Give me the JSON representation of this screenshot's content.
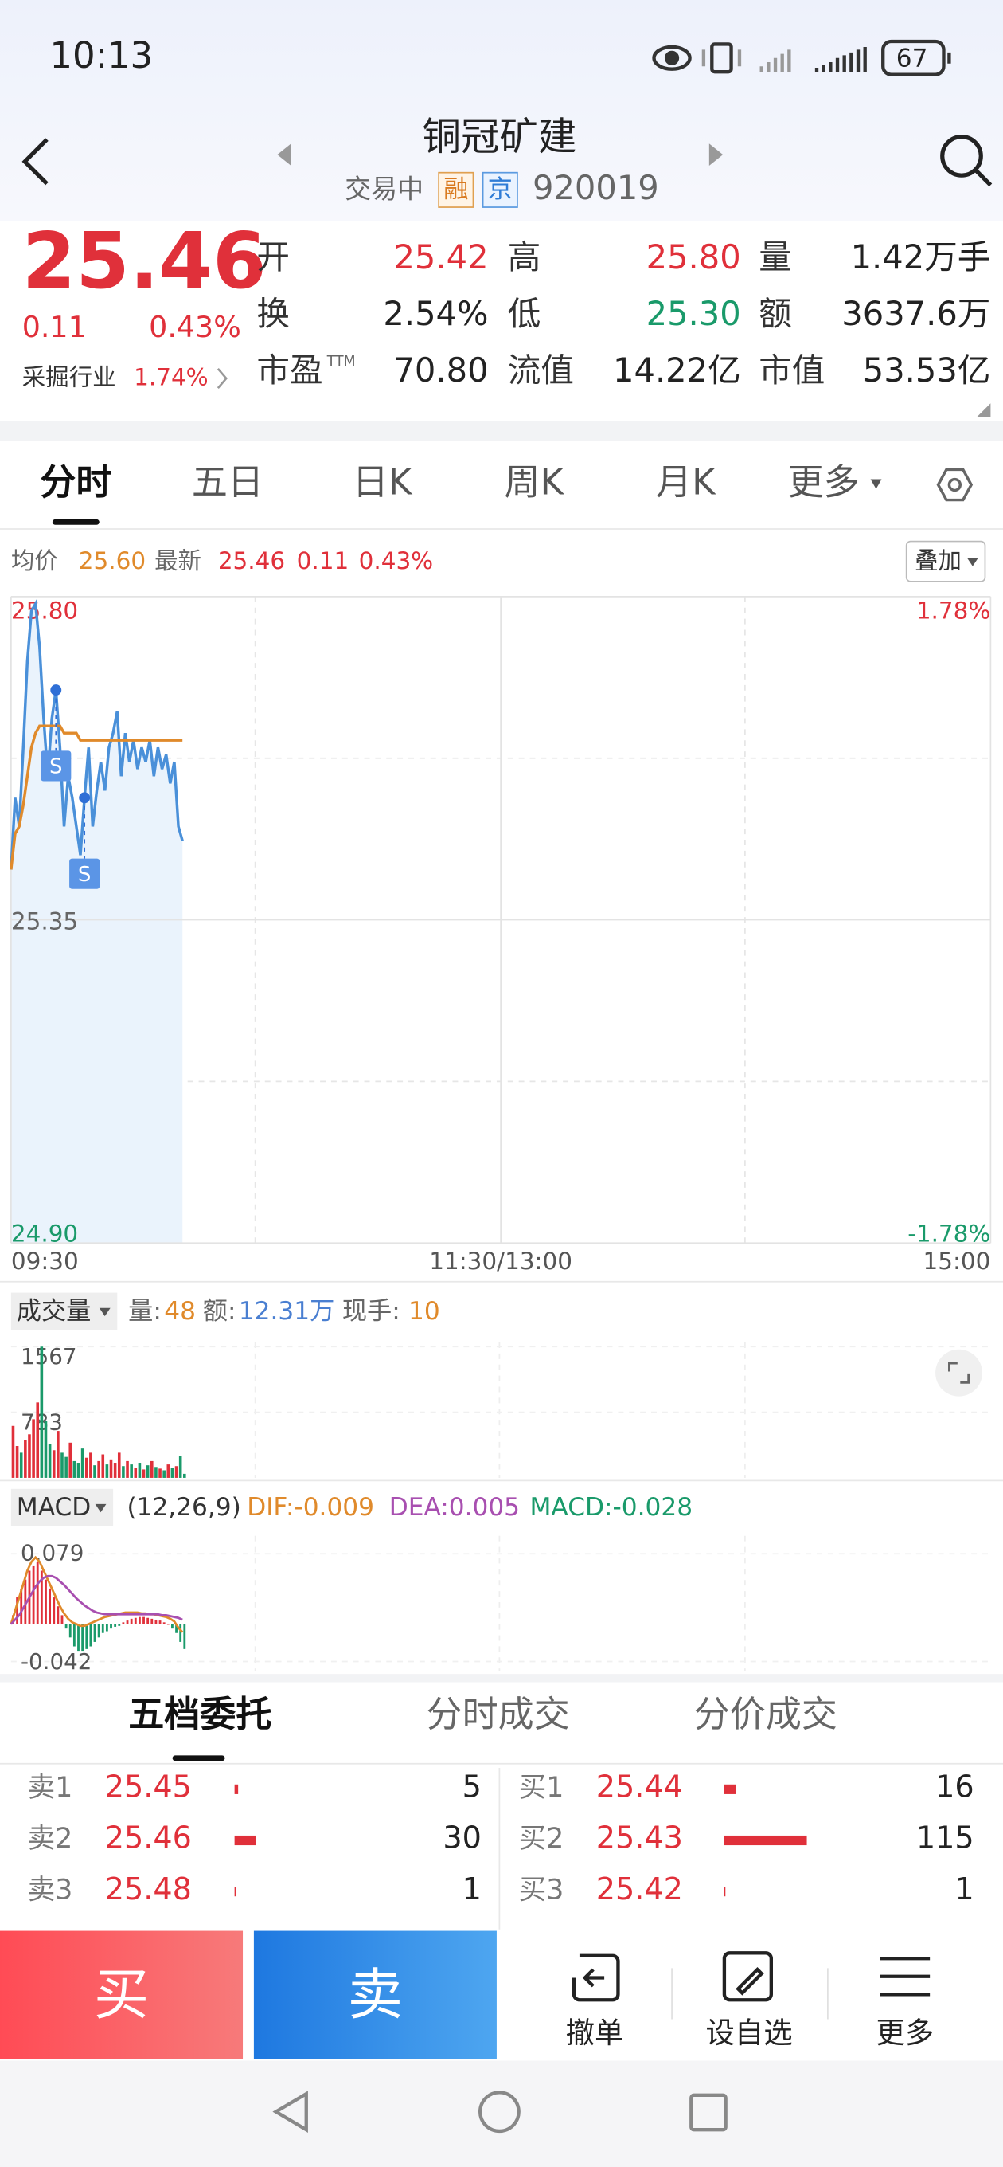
{
  "status_bar": {
    "time": "10:13",
    "battery": "67"
  },
  "header": {
    "title": "铜冠矿建",
    "status": "交易中",
    "tags": [
      "融",
      "京"
    ],
    "code": "920019"
  },
  "quote": {
    "price": "25.46",
    "change": "0.11",
    "change_pct": "0.43%",
    "industry": "采掘行业",
    "industry_pct": "1.74%",
    "stats": [
      {
        "label": "开",
        "value": "25.42",
        "color": "#e0303a"
      },
      {
        "label": "高",
        "value": "25.80",
        "color": "#e0303a"
      },
      {
        "label": "量",
        "value": "1.42万手",
        "color": "#222222"
      },
      {
        "label": "换",
        "value": "2.54%",
        "color": "#222222"
      },
      {
        "label": "低",
        "value": "25.30",
        "color": "#1a9a6a"
      },
      {
        "label": "额",
        "value": "3637.6万",
        "color": "#222222"
      },
      {
        "label": "市盈",
        "label_sup": "TTM",
        "value": "70.80",
        "color": "#222222"
      },
      {
        "label": "流值",
        "value": "14.22亿",
        "color": "#222222"
      },
      {
        "label": "市值",
        "value": "53.53亿",
        "color": "#222222"
      }
    ]
  },
  "tabs": {
    "items": [
      "分时",
      "五日",
      "日K",
      "周K",
      "月K",
      "更多"
    ],
    "active": 0
  },
  "quote_line": {
    "avg_label": "均价",
    "avg": "25.60",
    "latest_label": "最新",
    "latest": "25.46",
    "change": "0.11",
    "change_pct": "0.43%",
    "overlay_button": "叠加"
  },
  "chart_data": [
    {
      "type": "line",
      "x": [
        0,
        1,
        2,
        3,
        4,
        5,
        6,
        7,
        8,
        9,
        10,
        11,
        12,
        13,
        14,
        15,
        16,
        17,
        18,
        19,
        20,
        21,
        22,
        23,
        24,
        25,
        26,
        27,
        28,
        29,
        30,
        31,
        32,
        33,
        34,
        35,
        36,
        37,
        38,
        39,
        40,
        41,
        42
      ],
      "xlim": [
        0,
        240
      ],
      "xticks": [
        {
          "value": 0,
          "label": "09:30"
        },
        {
          "value": 120,
          "label": "11:30/13:00"
        },
        {
          "value": 240,
          "label": "15:00"
        }
      ],
      "ylim": [
        24.9,
        25.8
      ],
      "yticks": [
        {
          "value": 25.8,
          "label": "25.80"
        },
        25.35,
        {
          "value": 24.9,
          "label": "24.90"
        }
      ],
      "ytick_colors": [
        "#e0303a",
        "#666666",
        "#1a9a6a"
      ],
      "y2lim": [
        -1.78,
        1.78
      ],
      "y2ticks": [
        {
          "value": 1.78,
          "label": "1.78%"
        },
        {
          "value": -1.78,
          "label": "-1.78%"
        }
      ],
      "y2tick_colors": [
        "#e0303a",
        "#1a9a6a"
      ],
      "grid": true,
      "area_color": "#eaf3fc",
      "series": [
        {
          "color": "#4a90d9",
          "values": [
            25.42,
            25.52,
            25.48,
            25.59,
            25.71,
            25.78,
            25.79,
            25.73,
            25.63,
            25.55,
            25.63,
            25.67,
            25.59,
            25.48,
            25.55,
            25.52,
            25.48,
            25.44,
            25.52,
            25.59,
            25.48,
            25.53,
            25.57,
            25.53,
            25.59,
            25.61,
            25.64,
            25.55,
            25.61,
            25.57,
            25.6,
            25.56,
            25.59,
            25.57,
            25.6,
            25.55,
            25.59,
            25.56,
            25.58,
            25.54,
            25.57,
            25.48,
            25.46
          ]
        },
        {
          "color": "#e08a2b",
          "values": [
            25.42,
            25.47,
            25.48,
            25.51,
            25.55,
            25.59,
            25.61,
            25.62,
            25.62,
            25.62,
            25.62,
            25.62,
            25.62,
            25.61,
            25.61,
            25.61,
            25.61,
            25.6,
            25.6,
            25.6,
            25.6,
            25.6,
            25.6,
            25.6,
            25.6,
            25.6,
            25.6,
            25.6,
            25.6,
            25.6,
            25.6,
            25.6,
            25.6,
            25.6,
            25.6,
            25.6,
            25.6,
            25.6,
            25.6,
            25.6,
            25.6,
            25.6,
            25.6
          ]
        }
      ],
      "markers": [
        {
          "x": 11,
          "label": "S"
        },
        {
          "x": 18,
          "label": "S"
        }
      ]
    },
    {
      "type": "bar",
      "x": [
        0,
        1,
        2,
        3,
        4,
        5,
        6,
        7,
        8,
        9,
        10,
        11,
        12,
        13,
        14,
        15,
        16,
        17,
        18,
        19,
        20,
        21,
        22,
        23,
        24,
        25,
        26,
        27,
        28,
        29,
        30,
        31,
        32,
        33,
        34,
        35,
        36,
        37,
        38,
        39,
        40,
        41,
        42
      ],
      "xlim": [
        0,
        240
      ],
      "values": [
        620,
        380,
        300,
        450,
        520,
        700,
        900,
        1567,
        680,
        400,
        330,
        560,
        300,
        250,
        420,
        200,
        180,
        350,
        240,
        300,
        150,
        200,
        280,
        160,
        220,
        180,
        300,
        140,
        200,
        160,
        120,
        180,
        100,
        150,
        200,
        130,
        110,
        90,
        160,
        120,
        140,
        260,
        48
      ],
      "ylim": [
        0,
        1567
      ],
      "yticks": [
        1567,
        783
      ],
      "up_color": "#e0303a",
      "down_color": "#1a9a6a"
    },
    {
      "type": "macd",
      "x": [
        0,
        1,
        2,
        3,
        4,
        5,
        6,
        7,
        8,
        9,
        10,
        11,
        12,
        13,
        14,
        15,
        16,
        17,
        18,
        19,
        20,
        21,
        22,
        23,
        24,
        25,
        26,
        27,
        28,
        29,
        30,
        31,
        32,
        33,
        34,
        35,
        36,
        37,
        38,
        39,
        40,
        41,
        42
      ],
      "xlim": [
        0,
        240
      ],
      "values": [
        0.01,
        0.03,
        0.04,
        0.05,
        0.06,
        0.065,
        0.07,
        0.06,
        0.05,
        0.04,
        0.03,
        0.02,
        0.01,
        -0.005,
        -0.015,
        -0.025,
        -0.03,
        -0.03,
        -0.028,
        -0.025,
        -0.02,
        -0.015,
        -0.01,
        -0.008,
        -0.005,
        -0.003,
        -0.002,
        0.002,
        0.004,
        0.006,
        0.007,
        0.008,
        0.008,
        0.007,
        0.006,
        0.005,
        0.004,
        0.002,
        0,
        -0.005,
        -0.01,
        -0.02,
        -0.028
      ],
      "series": [
        {
          "color": "#e08a2b",
          "values": [
            0,
            0.015,
            0.03,
            0.045,
            0.06,
            0.07,
            0.075,
            0.07,
            0.06,
            0.05,
            0.04,
            0.03,
            0.02,
            0.012,
            0.006,
            0.002,
            0,
            -0.002,
            -0.002,
            0,
            0.002,
            0.004,
            0.006,
            0.008,
            0.009,
            0.01,
            0.011,
            0.012,
            0.013,
            0.013,
            0.013,
            0.013,
            0.012,
            0.012,
            0.011,
            0.011,
            0.01,
            0.009,
            0.008,
            0.006,
            0.003,
            -0.004,
            -0.009
          ]
        },
        {
          "color": "#a84fb0",
          "values": [
            0,
            0.005,
            0.01,
            0.018,
            0.026,
            0.034,
            0.042,
            0.048,
            0.052,
            0.054,
            0.054,
            0.052,
            0.048,
            0.044,
            0.039,
            0.034,
            0.029,
            0.025,
            0.021,
            0.018,
            0.015,
            0.013,
            0.012,
            0.011,
            0.011,
            0.011,
            0.011,
            0.011,
            0.011,
            0.011,
            0.011,
            0.011,
            0.011,
            0.011,
            0.011,
            0.011,
            0.011,
            0.01,
            0.01,
            0.009,
            0.008,
            0.007,
            0.005
          ]
        }
      ],
      "ylim": [
        -0.042,
        0.079
      ],
      "yticks": [
        0.079,
        -0.042
      ],
      "up_color": "#e0303a",
      "down_color": "#1a9a6a"
    }
  ],
  "volume_header": {
    "selector": "成交量",
    "volume_label": "量:",
    "volume": "48",
    "amount_label": "额:",
    "amount": "12.31万",
    "hand_label": "现手:",
    "hand": "10"
  },
  "macd_header": {
    "selector": "MACD",
    "params": "(12,26,9)",
    "dif": "DIF:-0.009",
    "dea": "DEA:0.005",
    "macd": "MACD:-0.028"
  },
  "order_book": {
    "tabs": [
      "五档委托",
      "分时成交",
      "分价成交"
    ],
    "active": 0,
    "asks": [
      {
        "label": "卖1",
        "price": "25.45",
        "qty": 5
      },
      {
        "label": "卖2",
        "price": "25.46",
        "qty": 30
      },
      {
        "label": "卖3",
        "price": "25.48",
        "qty": 1
      }
    ],
    "bids": [
      {
        "label": "买1",
        "price": "25.44",
        "qty": 16
      },
      {
        "label": "买2",
        "price": "25.43",
        "qty": 115
      },
      {
        "label": "买3",
        "price": "25.42",
        "qty": 1
      }
    ]
  },
  "bottom_bar": {
    "buy": "买",
    "sell": "卖",
    "actions": [
      "撤单",
      "设自选",
      "更多"
    ]
  }
}
